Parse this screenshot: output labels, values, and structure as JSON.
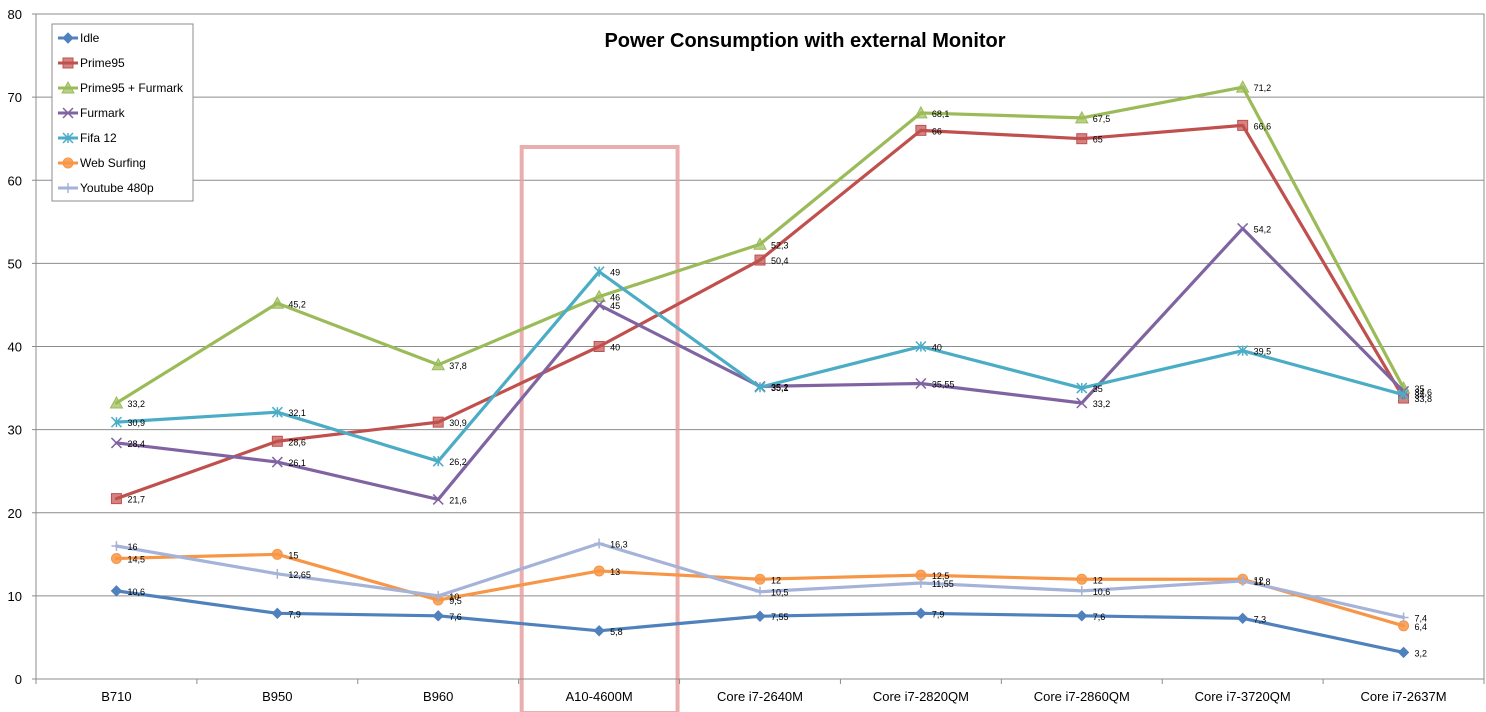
{
  "chart_data": {
    "type": "line",
    "title": "Power Consumption with external Monitor",
    "xlabel": "",
    "ylabel": "",
    "ylim": [
      0,
      80
    ],
    "yticks": [
      0,
      10,
      20,
      30,
      40,
      50,
      60,
      70,
      80
    ],
    "grid": true,
    "legend_position": "top-left",
    "highlighted_category": "A10-4600M",
    "highlight_color": "#e8a0a0",
    "categories": [
      "B710",
      "B950",
      "B960",
      "A10-4600M",
      "Core i7-2640M",
      "Core i7-2820QM",
      "Core i7-2860QM",
      "Core i7-3720QM",
      "Core i7-2637M"
    ],
    "series": [
      {
        "name": "Idle",
        "color": "#4f81bd",
        "marker": "diamond",
        "values": [
          10.6,
          7.9,
          7.6,
          5.8,
          7.55,
          7.9,
          7.6,
          7.3,
          3.2
        ],
        "labels": [
          "10,6",
          "7,9",
          "7,6",
          "5,8",
          "7,55",
          "7,9",
          "7,6",
          "7,3",
          "3,2"
        ]
      },
      {
        "name": "Prime95",
        "color": "#c0504d",
        "marker": "square",
        "values": [
          21.7,
          28.6,
          30.9,
          40,
          50.4,
          66,
          65,
          66.6,
          33.8
        ],
        "labels": [
          "21,7",
          "28,6",
          "30,9",
          "40",
          "50,4",
          "66",
          "65",
          "66,6",
          "33,8"
        ]
      },
      {
        "name": "Prime95 + Furmark",
        "color": "#9bbb59",
        "marker": "triangle",
        "values": [
          33.2,
          45.2,
          37.8,
          46,
          52.3,
          68.1,
          67.5,
          71.2,
          35
        ],
        "labels": [
          "33,2",
          "45,2",
          "37,8",
          "46",
          "52,3",
          "68,1",
          "67,5",
          "71,2",
          "35"
        ]
      },
      {
        "name": "Furmark",
        "color": "#8064a2",
        "marker": "x",
        "values": [
          28.4,
          26.1,
          21.6,
          45,
          35.2,
          35.55,
          33.2,
          54.2,
          34.6
        ],
        "labels": [
          "28,4",
          "26,1",
          "21,6",
          "45",
          "35,2",
          "35,55",
          "33,2",
          "54,2",
          "34,6"
        ]
      },
      {
        "name": "Fifa 12",
        "color": "#4bacc6",
        "marker": "star",
        "values": [
          30.9,
          32.1,
          26.2,
          49,
          35.1,
          40,
          35,
          39.5,
          34.2
        ],
        "labels": [
          "30,9",
          "32,1",
          "26,2",
          "49",
          "35,1",
          "40",
          "35",
          "39,5",
          "34"
        ]
      },
      {
        "name": "Web Surfing",
        "color": "#f79646",
        "marker": "circle",
        "values": [
          14.5,
          15,
          9.5,
          13,
          12,
          12.5,
          12,
          12,
          6.4
        ],
        "labels": [
          "14,5",
          "15",
          "9,5",
          "13",
          "12",
          "12,5",
          "12",
          "12",
          "6,4"
        ]
      },
      {
        "name": "Youtube 480p",
        "color": "#a5b3d8",
        "marker": "plus",
        "values": [
          16,
          12.65,
          10,
          16.3,
          10.5,
          11.55,
          10.6,
          11.8,
          7.4
        ],
        "labels": [
          "16",
          "12,65",
          "10",
          "16,3",
          "10,5",
          "11,55",
          "10,6",
          "11,8",
          "7,4"
        ]
      }
    ]
  }
}
